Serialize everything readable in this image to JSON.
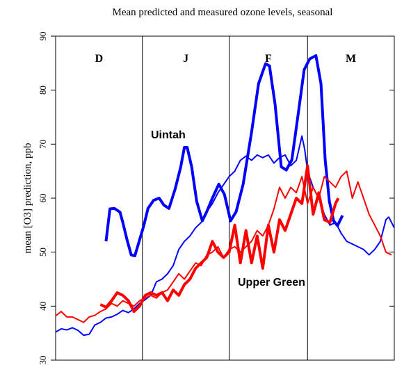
{
  "chart_data": {
    "type": "line",
    "title": "Mean predicted and measured ozone levels, seasonal",
    "y_label": "mean [O3] prediction, ppb",
    "xlim": [
      0,
      121
    ],
    "ylim": [
      30,
      90
    ],
    "yticks": [
      30,
      40,
      50,
      60,
      70,
      80,
      90
    ],
    "months": [
      "D",
      "J",
      "F",
      "M"
    ],
    "month_boundaries": [
      31,
      62,
      90
    ],
    "annotations": [
      "Uintah",
      "Upper Green"
    ],
    "series": [
      {
        "color": "#0000ff",
        "style": "thick",
        "x": [
          18,
          19.4,
          21,
          23,
          24,
          25.5,
          27,
          28.3,
          30,
          31.5,
          33,
          35,
          37,
          38.7,
          40.5,
          42.7,
          44.7,
          46,
          47,
          48.6,
          50.4,
          52.4,
          54,
          56,
          58.3,
          60.3,
          62.5,
          64.5,
          67,
          70,
          72.5,
          75,
          76.4,
          78.4,
          80.6,
          82.4,
          84.4,
          86.8,
          88.8,
          90.8,
          93,
          94.8,
          96.3,
          97.8,
          99.3,
          100.7,
          102.5
        ],
        "values": [
          52,
          58,
          58.1,
          57.4,
          55.5,
          52.3,
          49.5,
          49.3,
          52.3,
          54.9,
          58.1,
          59.6,
          60,
          58.7,
          58.1,
          61.7,
          65.8,
          69.4,
          69.4,
          65.8,
          59.4,
          55.8,
          57.5,
          60,
          62.6,
          60.7,
          55.8,
          57.5,
          62.6,
          72.2,
          81.2,
          84.9,
          84.5,
          77.4,
          65.8,
          65.2,
          67.1,
          76.1,
          83.8,
          85.8,
          86.4,
          81.2,
          67.1,
          59.4,
          55.8,
          54.9,
          56.8
        ]
      },
      {
        "color": "#0000ff",
        "style": "thin",
        "x": [
          0,
          2,
          4,
          6,
          8,
          10,
          12,
          14,
          16,
          18,
          20,
          22,
          24,
          26,
          28,
          30,
          32,
          34,
          36,
          38,
          40,
          42,
          44,
          46,
          48,
          50,
          52,
          54,
          56,
          58,
          60,
          62,
          64,
          66,
          68,
          70,
          72,
          74,
          76,
          78,
          80,
          82,
          84,
          86,
          88,
          89,
          90,
          92,
          94,
          96,
          98,
          100,
          102,
          104,
          106,
          108,
          110,
          112,
          114,
          116,
          118,
          119,
          121
        ],
        "values": [
          35.2,
          35.8,
          35.6,
          36,
          35.5,
          34.6,
          34.8,
          36.5,
          37,
          37.8,
          38,
          38.5,
          39.2,
          38.8,
          39.5,
          40.5,
          41.2,
          42,
          44.5,
          45,
          46,
          47.5,
          50.5,
          52,
          53,
          54.5,
          55.5,
          57.5,
          59,
          61,
          62.5,
          64,
          65,
          67,
          67.8,
          67,
          68,
          67.5,
          68,
          66.5,
          67.5,
          68,
          66,
          67,
          71.5,
          69,
          65,
          62,
          60,
          57,
          55,
          55.5,
          53.5,
          52,
          51.5,
          51,
          50.5,
          49.5,
          50.5,
          52,
          56,
          56.5,
          54.5
        ]
      },
      {
        "color": "#ff0000",
        "style": "thin",
        "x": [
          0,
          2,
          4,
          6,
          8,
          10,
          12,
          14,
          16,
          18,
          20,
          22,
          24,
          26,
          28,
          30,
          32,
          34,
          36,
          38,
          40,
          42,
          44,
          46,
          48,
          50,
          52,
          54,
          56,
          58,
          60,
          62,
          64,
          66,
          68,
          70,
          72,
          74,
          76,
          78,
          80,
          82,
          84,
          86,
          88,
          90,
          92,
          94,
          96,
          98,
          100,
          102,
          104,
          106,
          108,
          110,
          112,
          114,
          116,
          118,
          120
        ],
        "values": [
          38.2,
          39,
          38,
          38,
          37.5,
          37,
          38,
          38.3,
          39,
          39.5,
          40.5,
          40,
          41,
          40.5,
          40,
          41,
          41.5,
          42,
          41.5,
          42.5,
          43,
          44.5,
          46,
          45,
          46.5,
          48,
          47.5,
          49.5,
          50,
          51,
          49,
          50.5,
          51,
          50,
          51,
          52,
          54,
          53,
          55,
          58,
          62,
          60,
          62,
          61,
          64,
          59,
          62,
          60,
          64,
          63,
          62,
          64,
          65,
          60,
          63,
          60,
          57,
          55,
          53,
          50,
          49.5
        ]
      },
      {
        "color": "#ff0000",
        "style": "thick",
        "x": [
          16,
          18,
          20,
          22,
          24,
          26,
          28,
          30,
          32,
          34,
          36,
          38,
          40,
          42,
          44,
          46,
          48,
          50,
          52,
          54,
          56,
          58,
          60,
          62,
          64,
          66,
          68,
          70,
          72,
          74,
          76,
          78,
          80,
          82,
          84,
          86,
          88,
          90,
          92,
          94,
          96,
          98,
          100,
          101
        ],
        "values": [
          40.3,
          39.8,
          41,
          42.5,
          42,
          41,
          39,
          40,
          42,
          42.5,
          42,
          42.5,
          41,
          43,
          42,
          44,
          45,
          47,
          48,
          49,
          52,
          50,
          49,
          50,
          55,
          48,
          54,
          48,
          53,
          47,
          55,
          50,
          56,
          54,
          57,
          60,
          59,
          66,
          57,
          61,
          56,
          55.5,
          59,
          60
        ]
      }
    ]
  }
}
